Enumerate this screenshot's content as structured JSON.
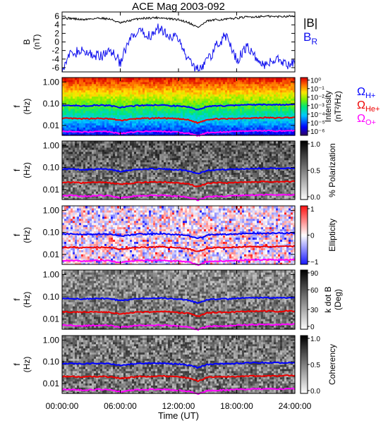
{
  "title": "ACE Mag 2003-092",
  "colors": {
    "B_total": "#000000",
    "B_R": "#1010ee",
    "omega_H": "#0000ff",
    "omega_He": "#ee0000",
    "omega_O": "#ff00ff",
    "panel_border": "#000000"
  },
  "chart_data": [
    {
      "type": "line",
      "panel": "magnetic-field",
      "ylabel_line1": "B",
      "ylabel_line2": "(nT)",
      "ylim": [
        -7,
        7
      ],
      "yticks": [
        "6",
        "4",
        "2",
        "0",
        "-2",
        "-4",
        "-6"
      ],
      "ytick_values": [
        6,
        4,
        2,
        0,
        -2,
        -4,
        -6
      ],
      "legend": [
        {
          "label": "|B|",
          "sub": "",
          "color": "#000000"
        },
        {
          "label": "B",
          "sub": "R",
          "color": "#1010ee"
        }
      ],
      "x_hours": [
        0,
        1,
        2,
        3,
        4,
        5,
        6,
        7,
        8,
        9,
        10,
        11,
        12,
        13,
        14,
        15,
        16,
        17,
        18,
        19,
        20,
        21,
        22,
        23,
        24
      ],
      "series": [
        {
          "values": [
            5.6,
            5.5,
            5.2,
            5.4,
            5.6,
            5.3,
            4.4,
            5.0,
            5.5,
            5.6,
            5.7,
            5.4,
            5.2,
            4.6,
            3.4,
            4.9,
            5.2,
            5.3,
            5.6,
            5.8,
            5.9,
            6.0,
            5.9,
            6.0,
            6.1
          ]
        },
        {
          "values": [
            -6.0,
            -2.5,
            -2.3,
            -2.8,
            -3.5,
            -1.8,
            -4.8,
            0.5,
            2.2,
            1.5,
            3.2,
            1.8,
            0.6,
            -4.3,
            -6.2,
            -4.5,
            -0.5,
            1.6,
            -4.4,
            -1.0,
            -3.9,
            -5.5,
            -3.8,
            -5.2,
            -5.0
          ]
        }
      ]
    },
    {
      "type": "heatmap",
      "panel": "intensity",
      "ylabel_line1": "f",
      "ylabel_line2": "(Hz)",
      "yticks": [
        "1.00",
        "0.10",
        "0.01"
      ],
      "colorbar_label": "Intensity",
      "colorbar_unit": "(nT²/Hz)",
      "colorbar_ticks": [
        "10⁰",
        "10⁻¹",
        "10⁻²",
        "10⁻³",
        "10⁻⁴",
        "10⁻⁵",
        "10⁻⁶"
      ],
      "colorbar_range": [
        -6.5,
        0.3
      ],
      "legend": [
        {
          "label": "Ω",
          "sub": "H+",
          "color": "#0000ff"
        },
        {
          "label": "Ω",
          "sub": "He+",
          "color": "#ee0000"
        },
        {
          "label": "Ω",
          "sub": "O+",
          "color": "#ff00ff"
        }
      ]
    },
    {
      "type": "heatmap",
      "panel": "polarization",
      "ylabel_line1": "f",
      "ylabel_line2": "(Hz)",
      "yticks": [
        "1.00",
        "0.10",
        "0.01"
      ],
      "colorbar_label": "% Polarization",
      "colorbar_unit": "",
      "colorbar_ticks": [
        "1.0",
        "0.5",
        "0.0"
      ],
      "colorbar_range": [
        0,
        1
      ]
    },
    {
      "type": "heatmap",
      "panel": "ellipticity",
      "ylabel_line1": "f",
      "ylabel_line2": "(Hz)",
      "yticks": [
        "1.00",
        "0.10",
        "0.01"
      ],
      "colorbar_label": "Ellipticity",
      "colorbar_unit": "",
      "colorbar_ticks": [
        "1",
        "0",
        "−1"
      ],
      "colorbar_range": [
        -1,
        1
      ]
    },
    {
      "type": "heatmap",
      "panel": "k-dot-b",
      "ylabel_line1": "f",
      "ylabel_line2": "(Hz)",
      "yticks": [
        "1.00",
        "0.10",
        "0.01"
      ],
      "colorbar_label": "k dot B",
      "colorbar_unit": "(Deg)",
      "colorbar_ticks": [
        "90",
        "60",
        "30",
        "0"
      ],
      "colorbar_range": [
        0,
        90
      ]
    },
    {
      "type": "heatmap",
      "panel": "coherency",
      "ylabel_line1": "f",
      "ylabel_line2": "(Hz)",
      "yticks": [
        "1.00",
        "0.10",
        "0.01"
      ],
      "colorbar_label": "Coherency",
      "colorbar_unit": "",
      "colorbar_ticks": [
        "1.0",
        "0.5",
        "0.0"
      ],
      "colorbar_range": [
        0,
        1
      ]
    }
  ],
  "gyrofrequency_lines_hz": {
    "x_hours": [
      0,
      1,
      2,
      3,
      4,
      5,
      6,
      7,
      8,
      9,
      10,
      11,
      12,
      13,
      14,
      15,
      16,
      17,
      18,
      19,
      20,
      21,
      22,
      23,
      24
    ],
    "H_plus": [
      0.085,
      0.084,
      0.08,
      0.082,
      0.085,
      0.081,
      0.067,
      0.076,
      0.084,
      0.085,
      0.087,
      0.082,
      0.079,
      0.07,
      0.052,
      0.075,
      0.079,
      0.081,
      0.085,
      0.088,
      0.09,
      0.091,
      0.09,
      0.091,
      0.093
    ],
    "He_plus": [
      0.021,
      0.021,
      0.02,
      0.021,
      0.021,
      0.02,
      0.017,
      0.019,
      0.021,
      0.021,
      0.022,
      0.021,
      0.02,
      0.018,
      0.013,
      0.019,
      0.02,
      0.02,
      0.021,
      0.022,
      0.022,
      0.023,
      0.022,
      0.023,
      0.023
    ],
    "O_plus": [
      0.0053,
      0.0053,
      0.005,
      0.0051,
      0.0053,
      0.0051,
      0.0042,
      0.0048,
      0.0053,
      0.0053,
      0.0054,
      0.0051,
      0.0049,
      0.0044,
      0.0033,
      0.0047,
      0.0049,
      0.005,
      0.0053,
      0.0055,
      0.0056,
      0.0057,
      0.0056,
      0.0057,
      0.0058
    ]
  },
  "x_axis": {
    "label": "Time (UT)",
    "xlim": [
      0,
      24
    ],
    "tick_values": [
      0,
      6,
      12,
      18,
      24
    ],
    "ticks": [
      "00:00:00",
      "06:00:00",
      "12:00:00",
      "18:00:00",
      "24:00:00"
    ]
  }
}
